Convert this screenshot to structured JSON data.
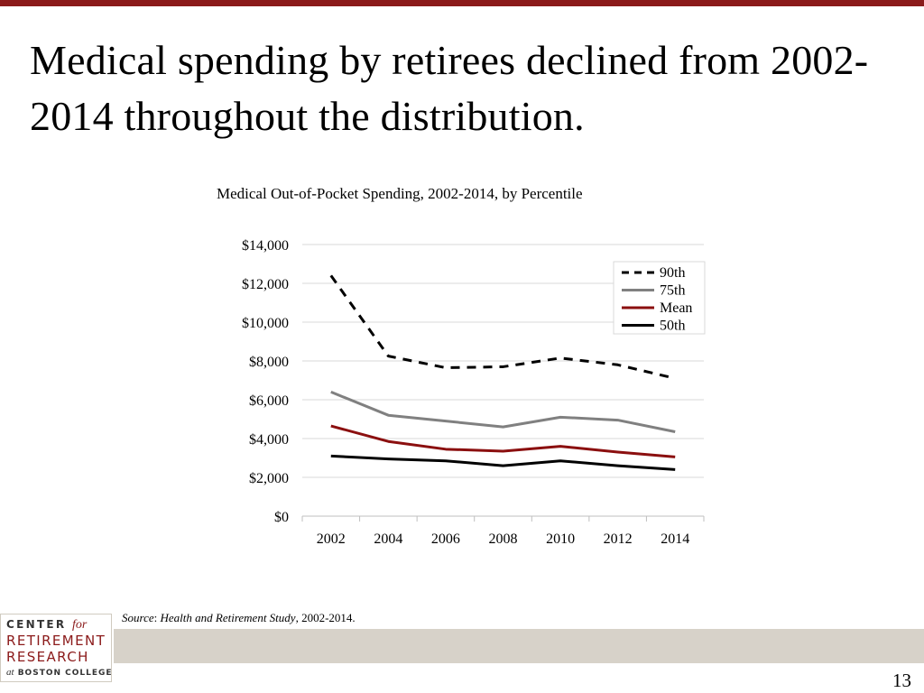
{
  "slide": {
    "title": "Medical spending by retirees declined from 2002-2014 throughout the distribution.",
    "page_number": "13"
  },
  "source": {
    "label": "Source",
    "colon": ": ",
    "study": "Health and Retirement Study",
    "years": ", 2002-2014."
  },
  "logo": {
    "line1": "CENTER",
    "line1_for": "for",
    "line2": "RETIREMENT",
    "line3": "RESEARCH",
    "line4_at": "at",
    "line4": " BOSTON COLLEGE"
  },
  "colors": {
    "accent": "#8b1a1a",
    "footer_band": "#d7d2c9"
  },
  "chart_data": {
    "type": "line",
    "title": "Medical Out-of-Pocket Spending, 2002-2014, by Percentile",
    "xlabel": "",
    "ylabel": "",
    "x": [
      "2002",
      "2004",
      "2006",
      "2008",
      "2010",
      "2012",
      "2014"
    ],
    "ylim": [
      0,
      14000
    ],
    "y_ticks": [
      0,
      2000,
      4000,
      6000,
      8000,
      10000,
      12000,
      14000
    ],
    "y_tick_labels": [
      "$0",
      "$2,000",
      "$4,000",
      "$6,000",
      "$8,000",
      "$10,000",
      "$12,000",
      "$14,000"
    ],
    "grid": true,
    "legend_position": "top-right",
    "series": [
      {
        "name": "90th",
        "values": [
          12400,
          8250,
          7650,
          7700,
          8150,
          7800,
          7100
        ],
        "color": "#000000",
        "style": "dashed"
      },
      {
        "name": "75th",
        "values": [
          6400,
          5200,
          4900,
          4600,
          5100,
          4950,
          4350
        ],
        "color": "#808080",
        "style": "solid"
      },
      {
        "name": "Mean",
        "values": [
          4650,
          3850,
          3450,
          3350,
          3600,
          3300,
          3050
        ],
        "color": "#8b0f0f",
        "style": "solid"
      },
      {
        "name": "50th",
        "values": [
          3100,
          2950,
          2850,
          2600,
          2850,
          2600,
          2400
        ],
        "color": "#000000",
        "style": "solid"
      }
    ]
  }
}
